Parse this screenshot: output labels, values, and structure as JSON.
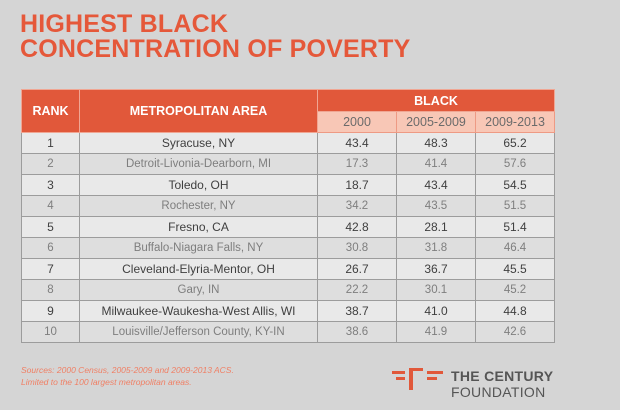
{
  "title": {
    "line1": "HIGHEST BLACK",
    "line2": "CONCENTRATION OF POVERTY"
  },
  "table": {
    "headers": {
      "rank": "RANK",
      "metro": "METROPOLITAN AREA",
      "group": "BLACK",
      "years": [
        "2000",
        "2005-2009",
        "2009-2013"
      ]
    },
    "rows": [
      {
        "rank": "1",
        "metro": "Syracuse, NY",
        "v2000": "43.4",
        "v2005": "48.3",
        "v2009": "65.2"
      },
      {
        "rank": "2",
        "metro": "Detroit-Livonia-Dearborn, MI",
        "v2000": "17.3",
        "v2005": "41.4",
        "v2009": "57.6"
      },
      {
        "rank": "3",
        "metro": "Toledo, OH",
        "v2000": "18.7",
        "v2005": "43.4",
        "v2009": "54.5"
      },
      {
        "rank": "4",
        "metro": "Rochester, NY",
        "v2000": "34.2",
        "v2005": "43.5",
        "v2009": "51.5"
      },
      {
        "rank": "5",
        "metro": "Fresno, CA",
        "v2000": "42.8",
        "v2005": "28.1",
        "v2009": "51.4"
      },
      {
        "rank": "6",
        "metro": "Buffalo-Niagara Falls, NY",
        "v2000": "30.8",
        "v2005": "31.8",
        "v2009": "46.4"
      },
      {
        "rank": "7",
        "metro": "Cleveland-Elyria-Mentor, OH",
        "v2000": "26.7",
        "v2005": "36.7",
        "v2009": "45.5"
      },
      {
        "rank": "8",
        "metro": "Gary, IN",
        "v2000": "22.2",
        "v2005": "30.1",
        "v2009": "45.2"
      },
      {
        "rank": "9",
        "metro": "Milwaukee-Waukesha-West Allis, WI",
        "v2000": "38.7",
        "v2005": "41.0",
        "v2009": "44.8"
      },
      {
        "rank": "10",
        "metro": "Louisville/Jefferson County, KY-IN",
        "v2000": "38.6",
        "v2005": "41.9",
        "v2009": "42.6"
      }
    ]
  },
  "footer": {
    "sources_line1": "Sources: 2000 Census,  2005-2009 and 2009-2013 ACS.",
    "sources_line2": "Limited to the 100 largest metropolitan areas."
  },
  "logo": {
    "line1": "THE CENTURY",
    "line2": "FOUNDATION",
    "mark": "century-foundation-logo-icon"
  },
  "colors": {
    "accent": "#e1583a",
    "subheader": "#f8c7b6",
    "background": "#d5d5d5"
  }
}
